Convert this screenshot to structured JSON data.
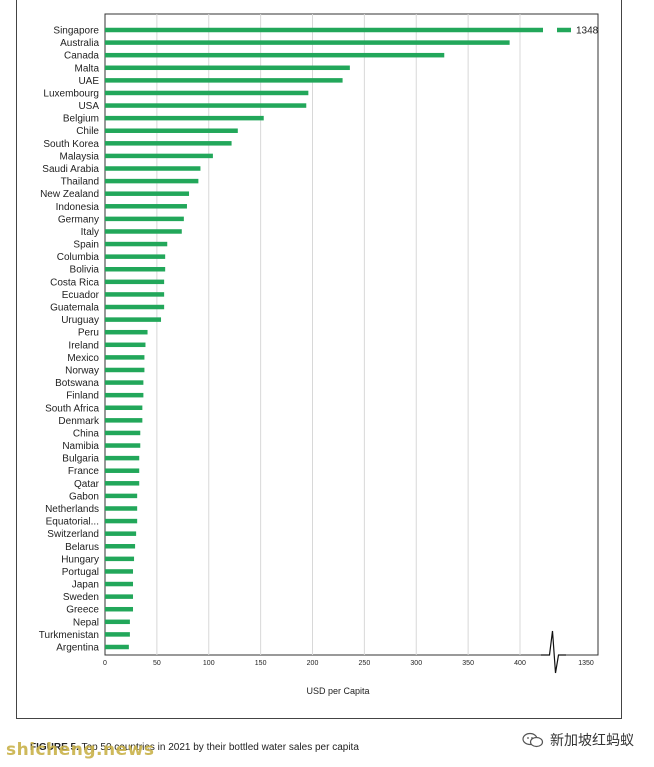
{
  "chart_data": {
    "type": "bar",
    "orientation": "horizontal",
    "title": "",
    "xlabel": "USD per Capita",
    "ylabel": "",
    "xlim": [
      0,
      1350
    ],
    "axis_break": {
      "from": 430,
      "to": 1300
    },
    "x_ticks": [
      0,
      50,
      100,
      150,
      200,
      250,
      300,
      350,
      400,
      1350
    ],
    "grid": true,
    "color": "#22a75a",
    "categories": [
      "Singapore",
      "Australia",
      "Canada",
      "Malta",
      "UAE",
      "Luxembourg",
      "USA",
      "Belgium",
      "Chile",
      "South Korea",
      "Malaysia",
      "Saudi Arabia",
      "Thailand",
      "New Zealand",
      "Indonesia",
      "Germany",
      "Italy",
      "Spain",
      "Columbia",
      "Bolivia",
      "Costa Rica",
      "Ecuador",
      "Guatemala",
      "Uruguay",
      "Peru",
      "Ireland",
      "Mexico",
      "Norway",
      "Botswana",
      "Finland",
      "South Africa",
      "Denmark",
      "China",
      "Namibia",
      "Bulgaria",
      "France",
      "Qatar",
      "Gabon",
      "Netherlands",
      "Equatorial...",
      "Switzerland",
      "Belarus",
      "Hungary",
      "Portugal",
      "Japan",
      "Sweden",
      "Greece",
      "Nepal",
      "Turkmenistan",
      "Argentina"
    ],
    "values": [
      1348,
      390,
      327,
      236,
      229,
      196,
      194,
      153,
      128,
      122,
      104,
      92,
      90,
      81,
      79,
      76,
      74,
      60,
      58,
      58,
      57,
      57,
      57,
      54,
      41,
      39,
      38,
      38,
      37,
      37,
      36,
      36,
      34,
      34,
      33,
      33,
      33,
      31,
      31,
      31,
      30,
      29,
      28,
      27,
      27,
      27,
      27,
      24,
      24,
      23
    ],
    "data_labels": [
      {
        "category": "Singapore",
        "text": "1348"
      }
    ]
  },
  "caption": {
    "figure": "FIGURE 5.",
    "text": " Top 50 countries in 2021 by their bottled water sales per capita"
  },
  "watermark": {
    "left": "shicheng.news",
    "right": "新加坡红蚂蚁"
  },
  "colors": {
    "bar": "#22a75a",
    "grid": "#d8d8d8",
    "axis": "#333333"
  }
}
